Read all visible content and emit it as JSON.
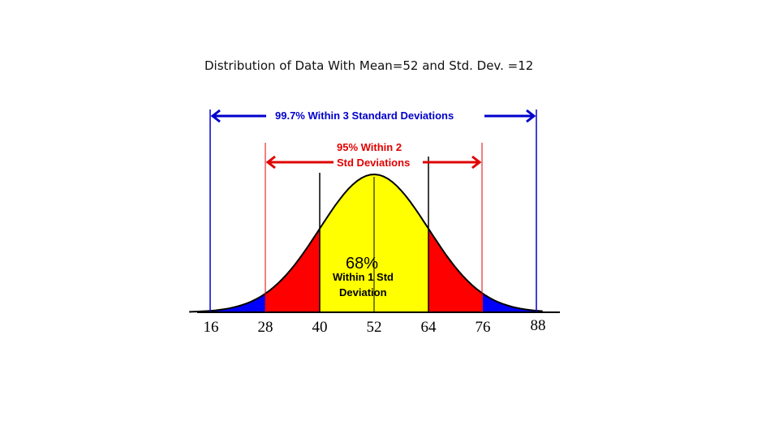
{
  "title": "Distribution of Data With Mean=52 and Std. Dev. =12",
  "distribution": {
    "mean": 52,
    "std_dev": 12
  },
  "ticks": [
    "16",
    "28",
    "40",
    "52",
    "64",
    "76",
    "88"
  ],
  "labels": {
    "three_sd": "99.7% Within 3 Standard Deviations",
    "two_sd_line1": "95% Within 2",
    "two_sd_line2": "Std Deviations",
    "one_sd_pct": "68%",
    "one_sd_line1": "Within 1 Std",
    "one_sd_line2": "Deviation"
  },
  "colors": {
    "within_1_sd": "#ffff00",
    "within_2_sd": "#ff0000",
    "within_3_sd": "#0000ff",
    "arrow_3_sd": "#0000cc",
    "arrow_2_sd": "#e00000"
  }
}
